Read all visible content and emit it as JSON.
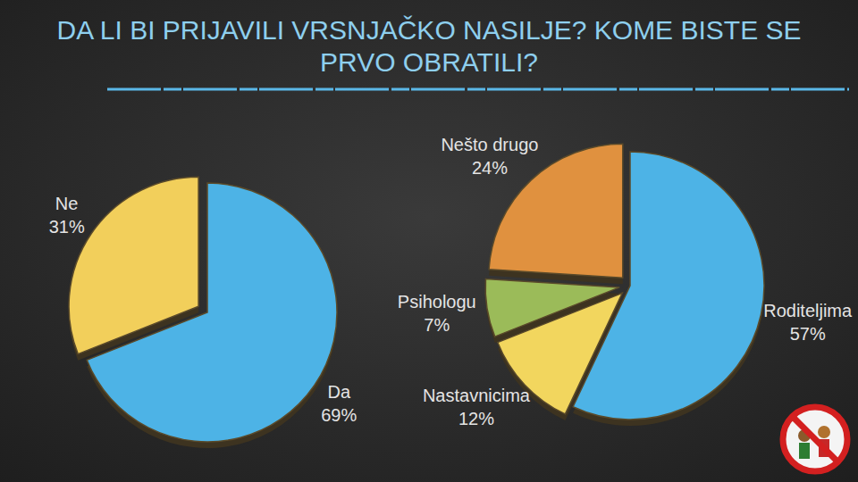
{
  "title": "DA LI BI PRIJAVILI VRSNJAČKO NASILJE? KOME BISTE SE PRVO OBRATILI?",
  "chart_data": [
    {
      "type": "pie",
      "categories": [
        "Da",
        "Ne"
      ],
      "values": [
        69,
        31
      ],
      "value_labels": [
        "69%",
        "31%"
      ],
      "colors": [
        "#4db3e6",
        "#f2cf5b"
      ],
      "data_labels": true
    },
    {
      "type": "pie",
      "categories": [
        "Roditeljima",
        "Nastavnicima",
        "Psihologu",
        "Nešto drugo"
      ],
      "values": [
        57,
        12,
        7,
        24
      ],
      "value_labels": [
        "57%",
        "12%",
        "7%",
        "24%"
      ],
      "colors": [
        "#4db3e6",
        "#f2d65e",
        "#9bbb59",
        "#e0913f"
      ],
      "data_labels": true
    }
  ]
}
